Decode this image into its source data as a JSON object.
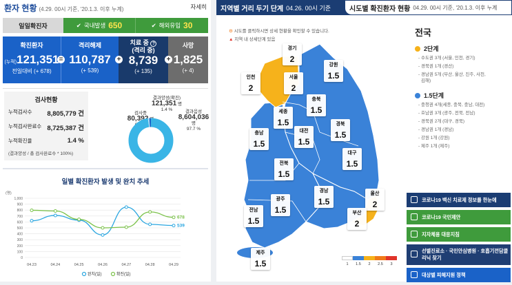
{
  "left": {
    "title": "환자 현황",
    "date": "(4.29. 00시 기준, '20.1.3. 이후 누계)",
    "more": "자세히",
    "tabs": {
      "daily": "일일확진자",
      "domestic_label": "국내발생",
      "domestic_value": "650",
      "overseas_label": "해외유입",
      "overseas_value": "30"
    },
    "stats": {
      "confirmed_label": "확진환자",
      "confirmed_prefix": "(누적)",
      "confirmed_value": "121,351",
      "confirmed_sub": "전일대비 (+ 678)",
      "released_label": "격리해제",
      "released_value": "110,787",
      "released_sub": "(+ 539)",
      "treating_label": "치료 중",
      "treating_label2": "(격리 중)",
      "treating_value": "8,739",
      "treating_sub": "(+ 135)",
      "death_label": "사망",
      "death_value": "1,825",
      "death_sub": "(+ 4)"
    },
    "test": {
      "title": "검사현황",
      "rows": [
        {
          "label": "누적검사수",
          "value": "8,805,779 건"
        },
        {
          "label": "누적검사완료수",
          "value": "8,725,387 건"
        },
        {
          "label": "누적확진율",
          "value": "1.4 %"
        }
      ],
      "note": "(결과양성 / 총 검사완료수 * 100%)",
      "donut_positive_label": "결과양성(확진)",
      "donut_positive_value": "121,351",
      "donut_positive_unit": "명",
      "donut_positive_pct": "1.4 %",
      "donut_testing_label": "검사중",
      "donut_testing_value": "80,392",
      "donut_testing_unit": "명",
      "donut_testing_pct": "0.9 %",
      "donut_negative_label": "결과음성",
      "donut_negative_value": "8,604,036",
      "donut_negative_unit": "명",
      "donut_negative_pct": "97.7 %",
      "colors": {
        "negative": "#3ab5e6",
        "testing": "#b9e3f5",
        "positive": "#1a62c8"
      }
    },
    "chart_title": "일별 확진환자 발생 및 완치 추세"
  },
  "chart_data": {
    "type": "line",
    "x": [
      "04.23",
      "04.24",
      "04.25",
      "04.26",
      "04.27",
      "04.28",
      "04.29"
    ],
    "ylabel": "(명)",
    "ylim": [
      0,
      1000
    ],
    "yticks": [
      "0",
      "100",
      "200",
      "300",
      "400",
      "500",
      "600",
      "700",
      "800",
      "900",
      "1,000"
    ],
    "series": [
      {
        "name": "완치(일)",
        "values": [
          620,
          710,
          630,
          380,
          850,
          560,
          539
        ],
        "color": "#2aa6e0"
      },
      {
        "name": "확진(일)",
        "values": [
          797,
          785,
          644,
          500,
          512,
          769,
          678
        ],
        "color": "#7bc24a"
      }
    ],
    "end_labels": [
      "539",
      "678"
    ]
  },
  "right": {
    "tab1_label": "지역별 거리 두기 단계",
    "tab1_date": "04.26. 00시 기준",
    "tab2_label": "시도별 확진환자 현황",
    "tab2_date": "04.29. 00시 기준, '20.1.3. 이후 누계",
    "note1": "시도를 클릭하시면 상세 현황을 확인할 수 있습니다.",
    "note2": "지역 내 상세단계 있음",
    "national": {
      "title": "전국",
      "level2": "2단계",
      "level2_items": [
        "- 수도권 3개 (서울, 인천, 경기)",
        "- 경북권 1개 (경산)",
        "- 경남권 5개 (부산, 울산, 진주, 사천,",
        "김해)"
      ],
      "level15": "1.5단계",
      "level15_items": [
        "- 충청권 4개(세종, 충북, 충남, 대전)",
        "- 호남권 3개 (광주, 전북, 전남)",
        "- 경북권 2개 (대구, 경북)",
        "- 경남권 1개 (경남)",
        "- 강원 1개 (강원)",
        "- 제주 1개 (제주)"
      ]
    },
    "regions": [
      {
        "name": "경기",
        "level": "2"
      },
      {
        "name": "인천",
        "level": "2"
      },
      {
        "name": "서울",
        "level": "2"
      },
      {
        "name": "강원",
        "level": "1.5"
      },
      {
        "name": "충북",
        "level": "1.5"
      },
      {
        "name": "세종",
        "level": "1.5"
      },
      {
        "name": "충남",
        "level": "1.5"
      },
      {
        "name": "대전",
        "level": "1.5"
      },
      {
        "name": "경북",
        "level": "1.5"
      },
      {
        "name": "전북",
        "level": "1.5"
      },
      {
        "name": "대구",
        "level": "1.5"
      },
      {
        "name": "광주",
        "level": "1.5"
      },
      {
        "name": "경남",
        "level": "1.5"
      },
      {
        "name": "울산",
        "level": "2"
      },
      {
        "name": "전남",
        "level": "1.5"
      },
      {
        "name": "부산",
        "level": "2"
      },
      {
        "name": "제주",
        "level": "1.5"
      }
    ],
    "legend": [
      {
        "label": "1",
        "color": "#ffffff"
      },
      {
        "label": "1.5",
        "color": "#3a82d8"
      },
      {
        "label": "2",
        "color": "#f6b21b"
      },
      {
        "label": "2.5",
        "color": "#f07a1a"
      },
      {
        "label": "3",
        "color": "#e0342a"
      }
    ],
    "buttons": [
      {
        "label": "코로나19 백신 치료제 정보를 한눈에",
        "color": "#1b3d73"
      },
      {
        "label": "코로나19 국민제안",
        "color": "#3f9b3c"
      },
      {
        "label": "지자체용 대응지침",
        "color": "#3f9b3c"
      },
      {
        "label": "선별진료소 · 국민안심병원 · 호흡기전담클리닉 찾기",
        "color": "#1f3e73"
      },
      {
        "label": "대상별 피해지원 정책",
        "color": "#1a62c8"
      }
    ],
    "colors": {
      "level15": "#3a82d8",
      "level2": "#f6b21b",
      "sea": "#ffffff"
    }
  }
}
